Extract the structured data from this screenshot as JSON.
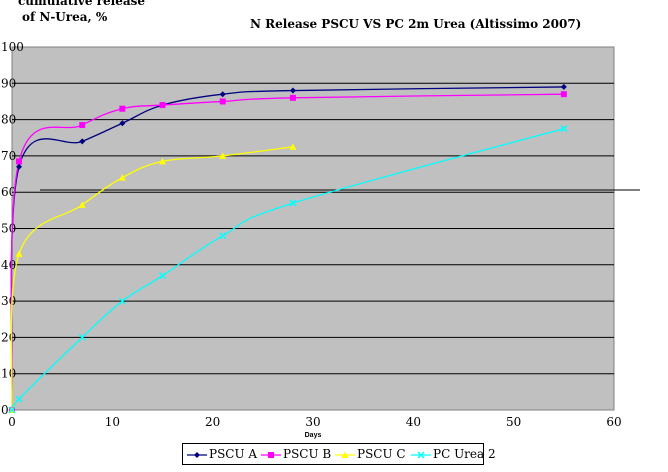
{
  "chart_data": {
    "type": "line",
    "title": "N Release PSCU VS PC 2m Urea (Altissimo 2007)",
    "ylabel_lines": [
      "cumulative release",
      "of N-Urea, %"
    ],
    "xlabel": "Days",
    "xlim": [
      0,
      60
    ],
    "ylim": [
      0,
      100
    ],
    "x_ticks": [
      "0",
      "10",
      "20",
      "30",
      "40",
      "50",
      "60"
    ],
    "y_ticks": [
      "0",
      "10",
      "20",
      "30",
      "40",
      "50",
      "60",
      "70",
      "80",
      "90",
      "100"
    ],
    "grid": "horizontal",
    "legend_position": "bottom",
    "series": [
      {
        "name": "PSCU A",
        "color": "#000080",
        "marker": "diamond",
        "x": [
          0,
          0.7,
          7,
          11,
          15,
          21,
          28,
          55
        ],
        "y": [
          0,
          67,
          74,
          79,
          84,
          87,
          88,
          89
        ]
      },
      {
        "name": "PSCU B",
        "color": "#ff00ff",
        "marker": "square",
        "x": [
          0,
          0.7,
          7,
          11,
          15,
          21,
          28,
          55
        ],
        "y": [
          0,
          68.5,
          78.5,
          83,
          84,
          85,
          86,
          87
        ]
      },
      {
        "name": "PSCU C",
        "color": "#ffff00",
        "marker": "triangle",
        "x": [
          0,
          0.7,
          7,
          11,
          15,
          21,
          28
        ],
        "y": [
          0,
          43,
          56.5,
          64,
          68.5,
          70,
          72.5
        ]
      },
      {
        "name": "PC Urea 2",
        "color": "#00ffff",
        "marker": "x",
        "x": [
          0,
          0.7,
          7,
          11,
          15,
          21,
          28,
          55
        ],
        "y": [
          0,
          3,
          20,
          30,
          37,
          48,
          57,
          77.5
        ]
      }
    ]
  }
}
